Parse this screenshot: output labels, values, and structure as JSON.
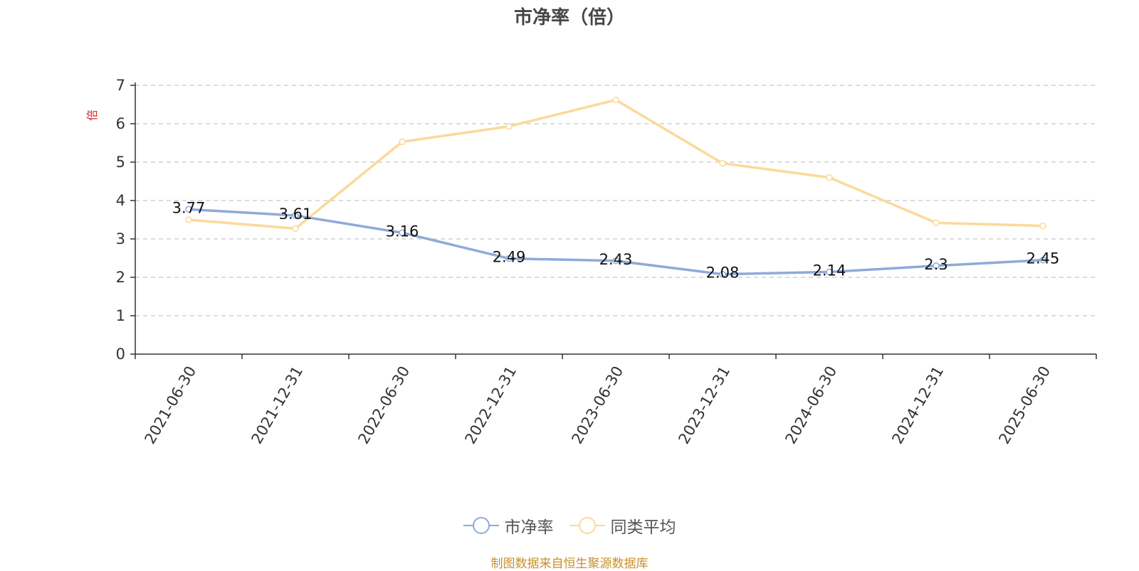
{
  "chart_data": {
    "type": "line",
    "title": "市净率（倍）",
    "ylabel": "倍",
    "xlabel": "",
    "categories": [
      "2021-06-30",
      "2021-12-31",
      "2022-06-30",
      "2022-12-31",
      "2023-06-30",
      "2023-12-31",
      "2024-06-30",
      "2024-12-31",
      "2025-06-30"
    ],
    "ylim": [
      0,
      7
    ],
    "yticks": [
      "0",
      "1",
      "2",
      "3",
      "4",
      "5",
      "6",
      "7"
    ],
    "grid": true,
    "legend_position": "bottom",
    "series": [
      {
        "name": "市净率",
        "color": "#8eaad8",
        "values": [
          3.77,
          3.61,
          3.16,
          2.49,
          2.43,
          2.08,
          2.14,
          2.3,
          2.45
        ],
        "labels": [
          "3.77",
          "3.61",
          "3.16",
          "2.49",
          "2.43",
          "2.08",
          "2.14",
          "2.3",
          "2.45"
        ]
      },
      {
        "name": "同类平均",
        "color": "#fcd99a",
        "values": [
          3.5,
          3.27,
          5.53,
          5.93,
          6.62,
          4.97,
          4.6,
          3.42,
          3.34
        ]
      }
    ]
  },
  "footer": {
    "source": "制图数据来自恒生聚源数据库"
  },
  "colors": {
    "ylabel": "#e0262b",
    "source": "#c8902a",
    "title": "#464646"
  }
}
